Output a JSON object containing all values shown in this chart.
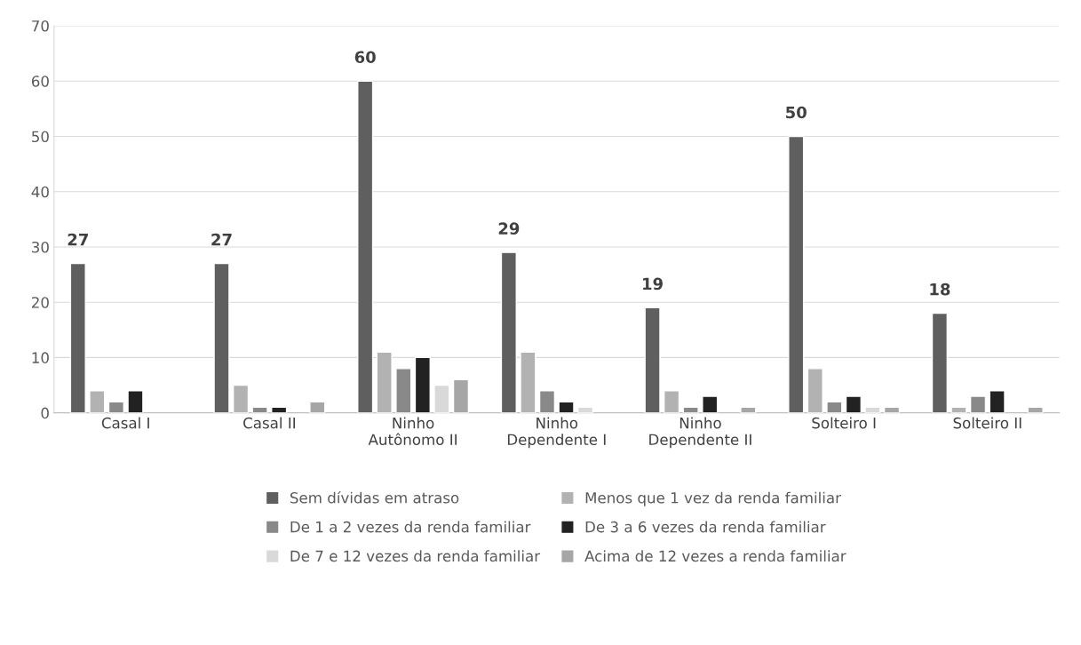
{
  "chart_data": {
    "type": "bar",
    "categories": [
      "Casal I",
      "Casal II",
      "Ninho\nAutônomo II",
      "Ninho\nDependente I",
      "Ninho\nDependente II",
      "Solteiro I",
      "Solteiro II"
    ],
    "series": [
      {
        "name": "Sem dívidas em atraso",
        "color": "#5f5f5f",
        "values": [
          27,
          27,
          60,
          29,
          19,
          50,
          18
        ],
        "value_labels": [
          "27",
          "27",
          "60",
          "29",
          "19",
          "50",
          "18"
        ]
      },
      {
        "name": "Menos que 1 vez da renda familiar",
        "color": "#b2b2b2",
        "values": [
          4,
          5,
          11,
          11,
          4,
          8,
          1
        ]
      },
      {
        "name": "De 1 a 2 vezes da renda familiar",
        "color": "#898989",
        "values": [
          2,
          1,
          8,
          4,
          1,
          2,
          3
        ]
      },
      {
        "name": "De 3 a 6 vezes da renda familiar",
        "color": "#222222",
        "values": [
          4,
          1,
          10,
          2,
          3,
          3,
          4
        ]
      },
      {
        "name": "De 7 e 12 vezes da renda familiar",
        "color": "#d9d9d9",
        "values": [
          null,
          null,
          5,
          1,
          null,
          1,
          null
        ]
      },
      {
        "name": "Acima de 12 vezes a renda familiar",
        "color": "#a6a6a6",
        "values": [
          null,
          2,
          6,
          null,
          1,
          1,
          1
        ]
      }
    ],
    "ylim": [
      0,
      70
    ],
    "yticks": [
      0,
      10,
      20,
      30,
      40,
      50,
      60,
      70
    ],
    "grid": "y",
    "legend": "bottom"
  }
}
